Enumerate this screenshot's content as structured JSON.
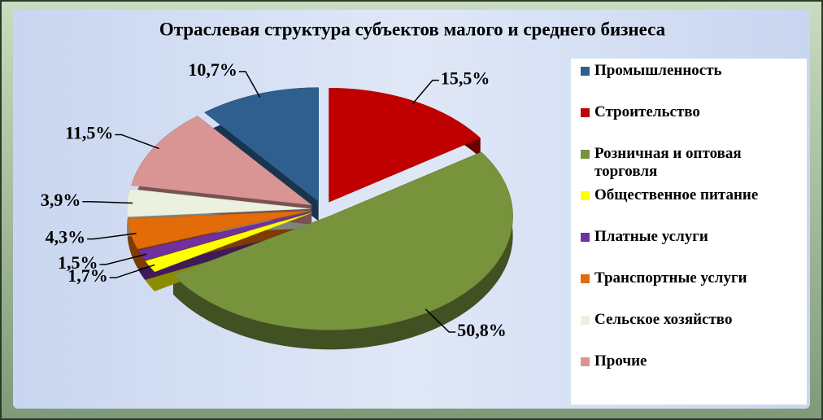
{
  "chart_data": {
    "type": "pie",
    "title": "Отраслевая структура субъектов малого и среднего бизнеса",
    "categories": [
      "Промышленность",
      "Строительство",
      "Розничная и оптовая торговля",
      "Общественное питание",
      "Платные услуги",
      "Транспортные услуги",
      "Сельское хозяйство",
      "Прочие"
    ],
    "values": [
      10.7,
      15.5,
      50.8,
      1.7,
      1.5,
      4.3,
      3.9,
      11.5
    ],
    "value_labels": [
      "10,7%",
      "15,5%",
      "50,8%",
      "1,7%",
      "1,5%",
      "4,3%",
      "3,9%",
      "11,5%"
    ],
    "colors": [
      "#2e5f8f",
      "#c00000",
      "#77933c",
      "#ffff00",
      "#7030a0",
      "#e36c09",
      "#ebf1de",
      "#d99594"
    ],
    "legend": "right"
  }
}
